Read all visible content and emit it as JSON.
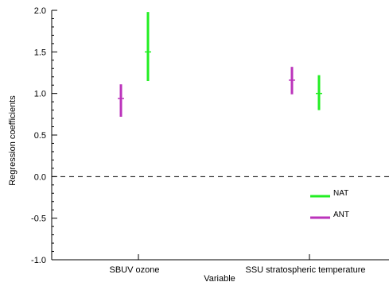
{
  "chart_data": {
    "type": "errorbar",
    "ylabel": "Regression coefficients",
    "xlabel": "Variable",
    "ylim": [
      -1.0,
      2.0
    ],
    "yticks": [
      "2.0",
      "1.5",
      "1.0",
      "0.5",
      "0.0",
      "-0.5",
      "-1.0"
    ],
    "ytick_values": [
      2.0,
      1.5,
      1.0,
      0.5,
      0.0,
      -0.5,
      -1.0
    ],
    "categories": [
      "SBUV ozone",
      "SSU stratospheric temperature"
    ],
    "reference_line": 0.0,
    "legend_position": "bottom-right",
    "series": [
      {
        "name": "NAT",
        "color": "#22ee22",
        "points": [
          {
            "category": "SBUV ozone",
            "value": 1.5,
            "low": 1.15,
            "high": 1.98
          },
          {
            "category": "SSU stratospheric temperature",
            "value": 1.0,
            "low": 0.8,
            "high": 1.22
          }
        ]
      },
      {
        "name": "ANT",
        "color": "#bb33bb",
        "points": [
          {
            "category": "SBUV ozone",
            "value": 0.94,
            "low": 0.72,
            "high": 1.11
          },
          {
            "category": "SSU stratospheric temperature",
            "value": 1.16,
            "low": 0.99,
            "high": 1.32
          }
        ]
      }
    ]
  }
}
